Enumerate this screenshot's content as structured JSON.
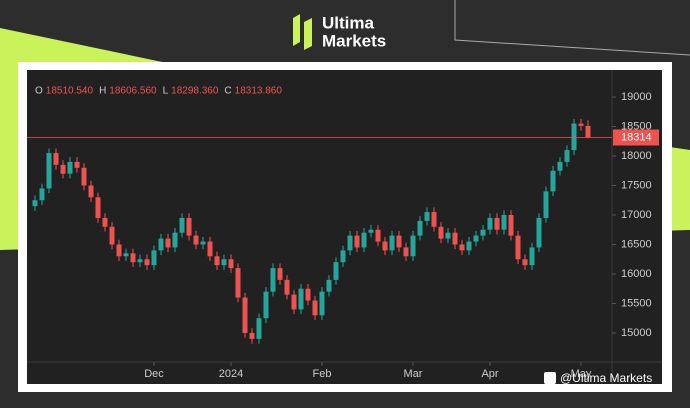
{
  "brand": {
    "line1": "Ultima",
    "line2": "Markets"
  },
  "watermark": "@Ultima Markets",
  "chart_data": {
    "type": "candlestick",
    "ohlc_header": [
      {
        "key": "O",
        "text": "18510.540"
      },
      {
        "key": "H",
        "text": "18606.560"
      },
      {
        "key": "L",
        "text": "18298.360"
      },
      {
        "key": "C",
        "text": "18313.860"
      }
    ],
    "last_price_label": "18314",
    "categories": [
      null,
      null,
      null,
      null,
      null,
      null,
      null,
      null,
      null,
      null,
      null,
      null,
      null,
      null,
      null,
      null,
      null,
      "Dec",
      null,
      null,
      null,
      null,
      null,
      null,
      null,
      null,
      null,
      null,
      "2024",
      null,
      null,
      null,
      null,
      null,
      null,
      null,
      null,
      null,
      null,
      null,
      null,
      "Feb",
      null,
      null,
      null,
      null,
      null,
      null,
      null,
      null,
      null,
      null,
      null,
      null,
      "Mar",
      null,
      null,
      null,
      null,
      null,
      null,
      null,
      null,
      null,
      null,
      "Apr",
      null,
      null,
      null,
      null,
      null,
      null,
      null,
      null,
      null,
      null,
      null,
      null,
      "May",
      null
    ],
    "open": [
      17150,
      17250,
      17450,
      18050,
      17850,
      17700,
      17900,
      17800,
      17500,
      17300,
      16950,
      16800,
      16500,
      16300,
      16350,
      16200,
      16250,
      16150,
      16400,
      16600,
      16450,
      16700,
      16950,
      16650,
      16500,
      16550,
      16300,
      16150,
      16250,
      16100,
      15600,
      15000,
      14900,
      15250,
      15700,
      16100,
      15900,
      15650,
      15400,
      15750,
      15550,
      15300,
      15700,
      15900,
      16200,
      16400,
      16650,
      16450,
      16700,
      16750,
      16550,
      16400,
      16650,
      16450,
      16300,
      16650,
      16900,
      17050,
      16800,
      16600,
      16700,
      16500,
      16400,
      16550,
      16650,
      16750,
      16950,
      16750,
      17000,
      16650,
      16250,
      16150,
      16450,
      16950,
      17400,
      17750,
      17900,
      18100,
      18550,
      18510.54
    ],
    "high": [
      17330,
      17530,
      18130,
      18130,
      17930,
      17980,
      17980,
      17880,
      17580,
      17380,
      17030,
      16880,
      16580,
      16430,
      16430,
      16330,
      16330,
      16480,
      16680,
      16680,
      16780,
      17030,
      17030,
      16730,
      16630,
      16630,
      16380,
      16330,
      16330,
      16180,
      15680,
      15080,
      15330,
      15780,
      16180,
      16180,
      15980,
      15730,
      15830,
      15830,
      15630,
      15780,
      15980,
      16280,
      16480,
      16730,
      16730,
      16780,
      16830,
      16830,
      16630,
      16730,
      16730,
      16530,
      16730,
      16980,
      17130,
      17130,
      16880,
      16780,
      16780,
      16580,
      16630,
      16730,
      16830,
      17030,
      17030,
      17080,
      17080,
      16730,
      16330,
      16530,
      17030,
      17480,
      17830,
      17980,
      18180,
      18630,
      18630,
      18606.56
    ],
    "low": [
      17070,
      17170,
      17370,
      17770,
      17620,
      17620,
      17720,
      17420,
      17220,
      16870,
      16720,
      16420,
      16220,
      16220,
      16120,
      16120,
      16070,
      16070,
      16320,
      16370,
      16370,
      16620,
      16570,
      16420,
      16420,
      16220,
      16070,
      16070,
      16020,
      15520,
      14920,
      14820,
      14820,
      15170,
      15620,
      15820,
      15570,
      15320,
      15320,
      15470,
      15220,
      15220,
      15620,
      15820,
      16120,
      16320,
      16370,
      16370,
      16620,
      16470,
      16320,
      16320,
      16370,
      16220,
      16220,
      16570,
      16820,
      16720,
      16520,
      16520,
      16420,
      16320,
      16320,
      16470,
      16570,
      16670,
      16670,
      16670,
      16570,
      16170,
      16070,
      16070,
      16370,
      16870,
      17320,
      17670,
      17820,
      18020,
      18430,
      18298.36
    ],
    "close": [
      17250,
      17450,
      18050,
      17850,
      17700,
      17900,
      17800,
      17500,
      17300,
      16950,
      16800,
      16500,
      16300,
      16350,
      16200,
      16250,
      16150,
      16400,
      16600,
      16450,
      16700,
      16950,
      16650,
      16500,
      16550,
      16300,
      16150,
      16250,
      16100,
      15600,
      15000,
      14900,
      15250,
      15700,
      16100,
      15900,
      15650,
      15400,
      15750,
      15550,
      15300,
      15700,
      15900,
      16200,
      16400,
      16650,
      16450,
      16700,
      16750,
      16550,
      16400,
      16650,
      16450,
      16300,
      16650,
      16900,
      17050,
      16800,
      16600,
      16700,
      16500,
      16400,
      16550,
      16650,
      16750,
      16950,
      16750,
      17000,
      16650,
      16250,
      16150,
      16450,
      16950,
      17400,
      17750,
      17900,
      18100,
      18550,
      18510.54,
      18313.86
    ],
    "up_color": "#26a69a",
    "down_color": "#ef5350",
    "ylim": [
      14508,
      19458
    ],
    "yticks": [
      15000,
      15500,
      16000,
      16500,
      17000,
      17500,
      18000,
      18500,
      19000
    ]
  }
}
